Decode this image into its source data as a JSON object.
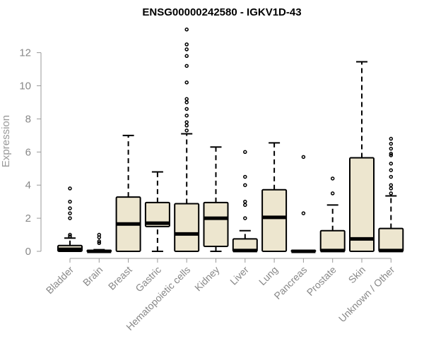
{
  "chart_data": {
    "type": "box",
    "title": "ENSG00000242580 - IGKV1D-43",
    "xlabel": "",
    "ylabel": "Expression",
    "ylim": [
      0,
      13.4
    ],
    "yticks": [
      0,
      2,
      4,
      6,
      8,
      10,
      12
    ],
    "grid": false,
    "box_fill": "#ede6cf",
    "box_stroke": "#000000",
    "categories": [
      "Bladder",
      "Brain",
      "Breast",
      "Gastric",
      "Hematopoietic cells",
      "Kidney",
      "Liver",
      "Lung",
      "Pancreas",
      "Prostate",
      "Skin",
      "Unknown / Other"
    ],
    "boxes": [
      {
        "category": "Bladder",
        "whisker_low": 0.0,
        "q1": 0.0,
        "median": 0.12,
        "q3": 0.35,
        "whisker_high": 0.8,
        "outliers": [
          0.9,
          1.0,
          2.0,
          2.3,
          2.6,
          3.0,
          3.8
        ]
      },
      {
        "category": "Brain",
        "whisker_low": 0.0,
        "q1": 0.0,
        "median": 0.0,
        "q3": 0.05,
        "whisker_high": 0.1,
        "outliers": [
          0.5,
          0.6,
          0.85,
          1.0
        ]
      },
      {
        "category": "Breast",
        "whisker_low": 0.0,
        "q1": 0.0,
        "median": 1.65,
        "q3": 3.28,
        "whisker_high": 7.0,
        "outliers": []
      },
      {
        "category": "Gastric",
        "whisker_low": 0.0,
        "q1": 1.5,
        "median": 1.7,
        "q3": 2.95,
        "whisker_high": 4.8,
        "outliers": []
      },
      {
        "category": "Hematopoietic cells",
        "whisker_low": 0.0,
        "q1": 0.0,
        "median": 1.05,
        "q3": 2.88,
        "whisker_high": 7.1,
        "outliers": [
          7.3,
          7.6,
          7.8,
          8.2,
          8.6,
          9.0,
          9.2,
          10.2,
          11.2,
          11.8,
          12.2,
          12.5,
          13.4
        ]
      },
      {
        "category": "Kidney",
        "whisker_low": 0.0,
        "q1": 0.3,
        "median": 2.0,
        "q3": 2.95,
        "whisker_high": 6.3,
        "outliers": []
      },
      {
        "category": "Liver",
        "whisker_low": 0.0,
        "q1": 0.0,
        "median": 0.05,
        "q3": 0.75,
        "whisker_high": 1.25,
        "outliers": [
          2.0,
          2.8,
          3.0,
          4.0,
          4.5,
          6.0
        ]
      },
      {
        "category": "Lung",
        "whisker_low": 0.0,
        "q1": 0.0,
        "median": 2.05,
        "q3": 3.72,
        "whisker_high": 6.55,
        "outliers": []
      },
      {
        "category": "Pancreas",
        "whisker_low": 0.0,
        "q1": 0.0,
        "median": 0.0,
        "q3": 0.05,
        "whisker_high": 0.05,
        "outliers": [
          2.3,
          5.7
        ]
      },
      {
        "category": "Prostate",
        "whisker_low": 0.0,
        "q1": 0.0,
        "median": 0.05,
        "q3": 1.25,
        "whisker_high": 2.8,
        "outliers": [
          3.5,
          4.4
        ]
      },
      {
        "category": "Skin",
        "whisker_low": 0.0,
        "q1": 0.0,
        "median": 0.75,
        "q3": 5.65,
        "whisker_high": 11.45,
        "outliers": []
      },
      {
        "category": "Unknown / Other",
        "whisker_low": 0.0,
        "q1": 0.0,
        "median": 0.05,
        "q3": 1.38,
        "whisker_high": 3.35,
        "outliers": [
          3.5,
          3.8,
          4.0,
          4.5,
          4.9,
          5.3,
          5.8,
          5.9,
          6.2,
          6.5,
          6.8
        ]
      }
    ]
  }
}
